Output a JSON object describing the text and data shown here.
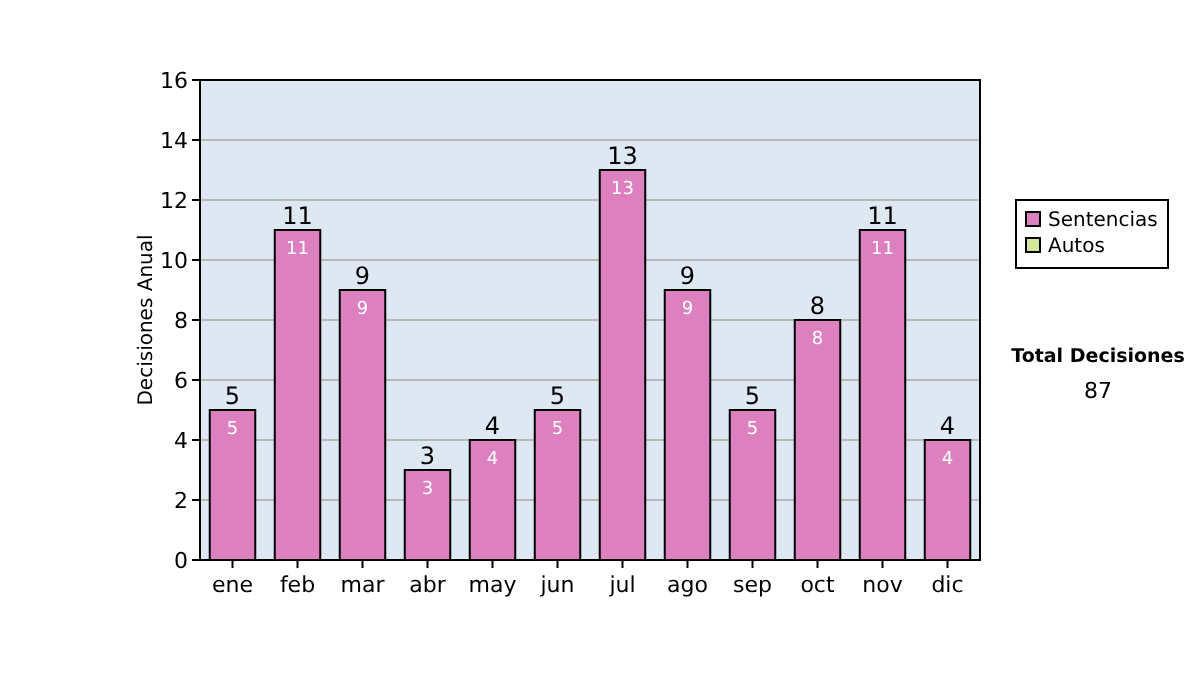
{
  "chart_data": {
    "type": "bar",
    "stacked": true,
    "ylabel": "Decisiones Anual",
    "categories": [
      "ene",
      "feb",
      "mar",
      "abr",
      "may",
      "jun",
      "jul",
      "ago",
      "sep",
      "oct",
      "nov",
      "dic"
    ],
    "series": [
      {
        "name": "Sentencias",
        "color": "#dd80c0",
        "values": [
          5,
          11,
          9,
          3,
          4,
          5,
          13,
          9,
          5,
          8,
          11,
          4
        ],
        "value_labels": [
          "5",
          "11",
          "9",
          "3",
          "4",
          "5",
          "13",
          "9",
          "5",
          "8",
          "11",
          "4"
        ]
      },
      {
        "name": "Autos",
        "color": "#d4e89c",
        "values": [
          0,
          0,
          0,
          0,
          0,
          0,
          0,
          0,
          0,
          0,
          0,
          0
        ]
      }
    ],
    "totals": [
      "5",
      "11",
      "9",
      "3",
      "4",
      "5",
      "13",
      "9",
      "5",
      "8",
      "11",
      "4"
    ],
    "ylim": [
      0,
      16
    ],
    "yticks": [
      0,
      2,
      4,
      6,
      8,
      10,
      12,
      14,
      16
    ],
    "grid": "y",
    "legend": "right",
    "annotations": [
      "Total Decisiones",
      "87"
    ]
  }
}
